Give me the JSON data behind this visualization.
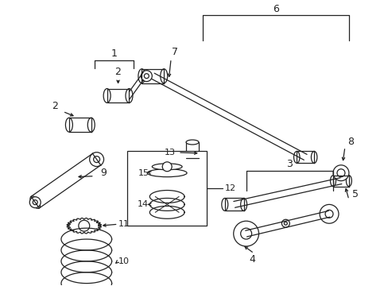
{
  "background_color": "#ffffff",
  "figsize": [
    4.89,
    3.6
  ],
  "dpi": 100,
  "color": "#222222",
  "lw": 0.9
}
